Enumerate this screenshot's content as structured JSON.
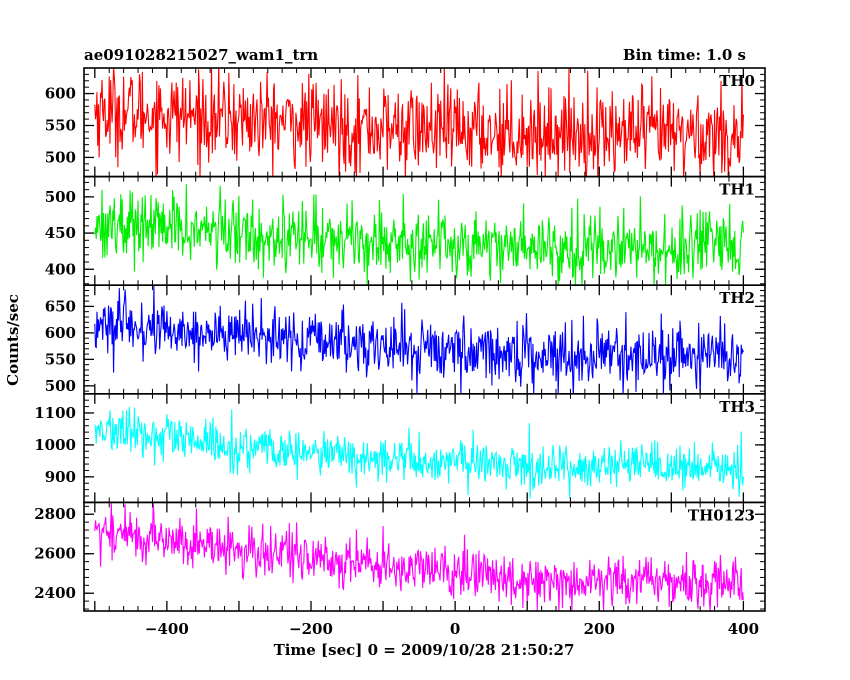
{
  "header": {
    "left_title": "ae091028215027_wam1_trn",
    "right_title": "Bin time: 1.0 s"
  },
  "chart_data": {
    "type": "line",
    "title": "ae091028215027_wam1_trn",
    "subtitle": "Bin time: 1.0 s",
    "xlabel": "Time [sec] 0 = 2009/10/28 21:50:27",
    "ylabel": "Counts/sec",
    "xlim": [
      -515,
      430
    ],
    "x_range": [
      -500,
      400
    ],
    "bin_time": 1.0,
    "xticks": [
      -400,
      -200,
      0,
      200,
      400
    ],
    "xtick_labels": [
      "−400",
      "−200",
      "0",
      "200",
      "400"
    ],
    "grid": false,
    "series": [
      {
        "name": "TH0",
        "color": "#ff0000",
        "ylim": [
          470,
          640
        ],
        "yticks": [
          500,
          550,
          600
        ],
        "ytick_labels": [
          "500",
          "550",
          "600"
        ],
        "trend": [
          [
            -500,
            575
          ],
          [
            -300,
            560
          ],
          [
            -100,
            545
          ],
          [
            100,
            540
          ],
          [
            400,
            535
          ]
        ],
        "amplitude": 35,
        "min": 465,
        "max": 660
      },
      {
        "name": "TH1",
        "color": "#00ee00",
        "ylim": [
          378,
          528
        ],
        "yticks": [
          400,
          450,
          500
        ],
        "ytick_labels": [
          "400",
          "450",
          "500"
        ],
        "trend": [
          [
            -500,
            465
          ],
          [
            -300,
            450
          ],
          [
            -100,
            440
          ],
          [
            100,
            432
          ],
          [
            400,
            428
          ]
        ],
        "amplitude": 24,
        "min": 375,
        "max": 530
      },
      {
        "name": "TH2",
        "color": "#0000ff",
        "ylim": [
          485,
          690
        ],
        "yticks": [
          500,
          550,
          600,
          650
        ],
        "ytick_labels": [
          "500",
          "550",
          "600",
          "650"
        ],
        "trend": [
          [
            -500,
            615
          ],
          [
            -300,
            595
          ],
          [
            -100,
            575
          ],
          [
            100,
            560
          ],
          [
            400,
            555
          ]
        ],
        "amplitude": 28,
        "min": 480,
        "max": 690
      },
      {
        "name": "TH3",
        "color": "#00ffff",
        "ylim": [
          820,
          1160
        ],
        "yticks": [
          900,
          1000,
          1100
        ],
        "ytick_labels": [
          "900",
          "1000",
          "1100"
        ],
        "trend": [
          [
            -500,
            1050
          ],
          [
            -300,
            990
          ],
          [
            -100,
            955
          ],
          [
            100,
            935
          ],
          [
            400,
            925
          ]
        ],
        "amplitude": 35,
        "min": 820,
        "max": 1160
      },
      {
        "name": "TH0123",
        "color": "#ff00ff",
        "ylim": [
          2310,
          2860
        ],
        "yticks": [
          2400,
          2600,
          2800
        ],
        "ytick_labels": [
          "2400",
          "2600",
          "2800"
        ],
        "trend": [
          [
            -500,
            2720
          ],
          [
            -300,
            2620
          ],
          [
            -100,
            2540
          ],
          [
            100,
            2470
          ],
          [
            400,
            2455
          ]
        ],
        "amplitude": 65,
        "min": 2310,
        "max": 2860
      }
    ]
  }
}
